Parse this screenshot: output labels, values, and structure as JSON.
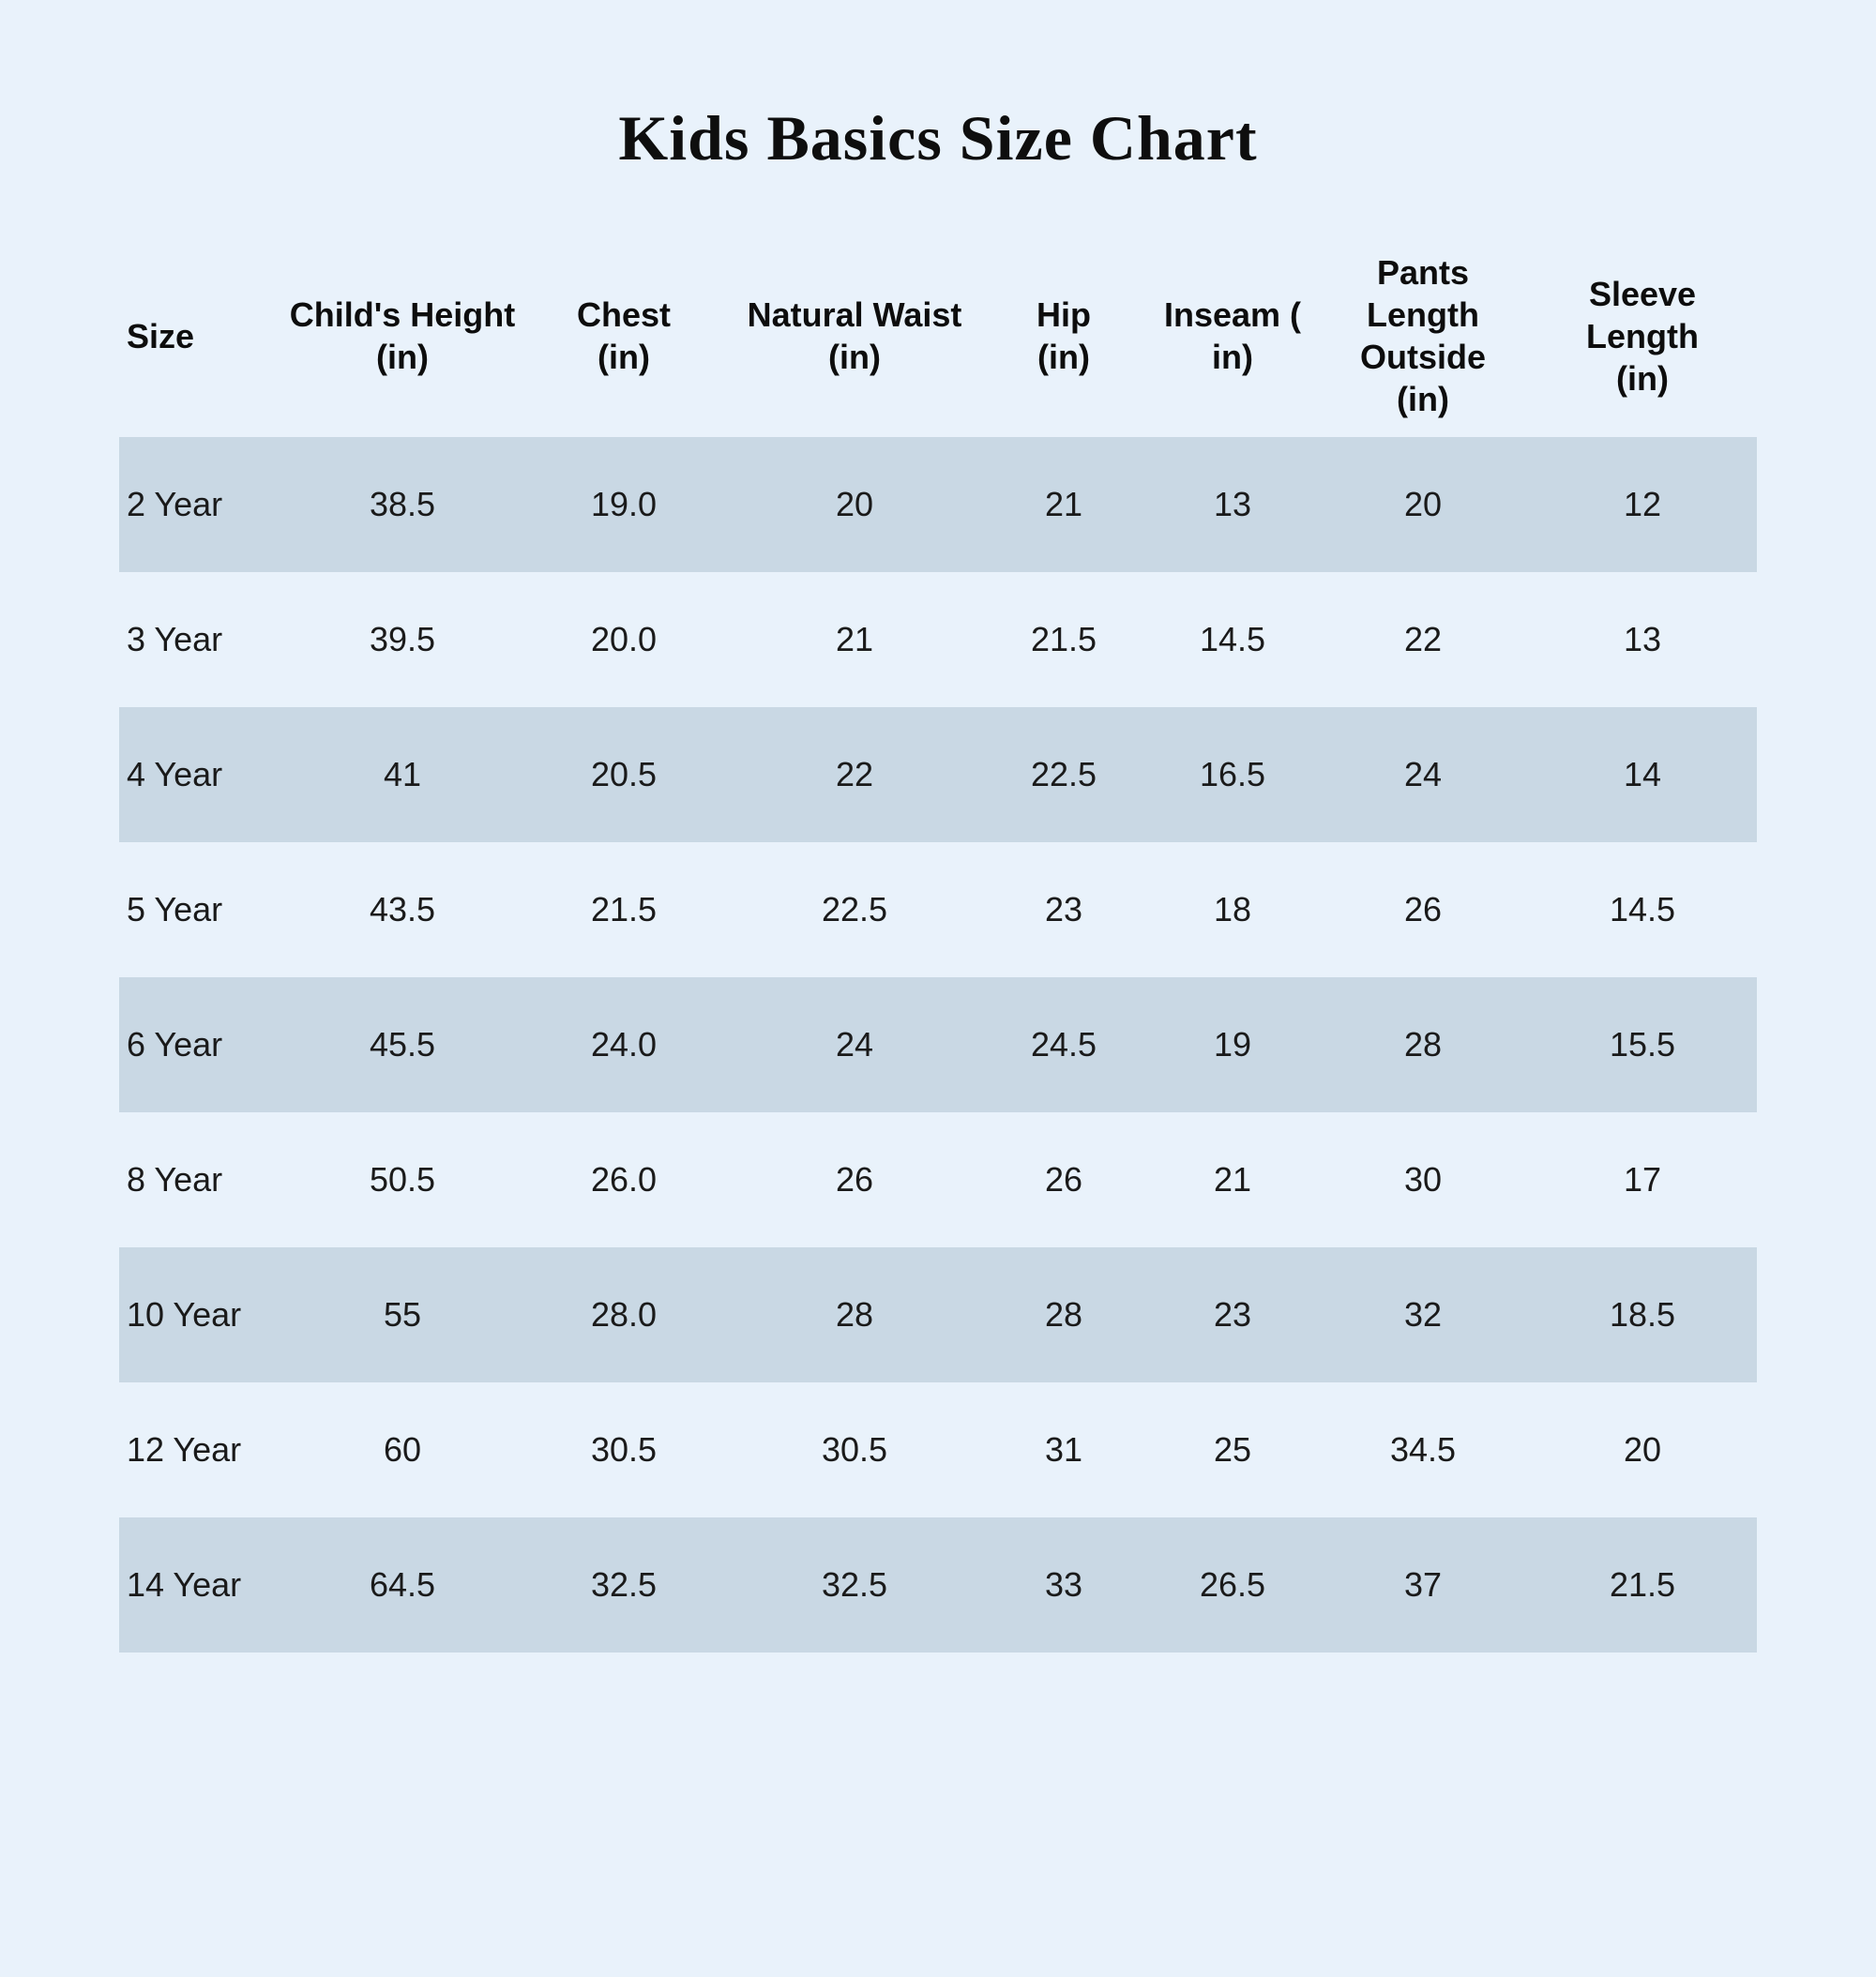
{
  "title": "Kids Basics Size Chart",
  "colors": {
    "background": "#e9f2fb",
    "row_shade": "#c9d8e4",
    "text": "#141414"
  },
  "table": {
    "columns": [
      "Size",
      "Child's Height\n(in)",
      "Chest\n(in)",
      "Natural Waist\n(in)",
      "Hip\n(in)",
      "Inseam ( in)",
      "Pants\nLength\nOutside\n(in)",
      "Sleeve Length\n(in)"
    ],
    "rows": [
      [
        "2 Year",
        "38.5",
        "19.0",
        "20",
        "21",
        "13",
        "20",
        "12"
      ],
      [
        "3 Year",
        "39.5",
        "20.0",
        "21",
        "21.5",
        "14.5",
        "22",
        "13"
      ],
      [
        "4 Year",
        "41",
        "20.5",
        "22",
        "22.5",
        "16.5",
        "24",
        "14"
      ],
      [
        "5 Year",
        "43.5",
        "21.5",
        "22.5",
        "23",
        "18",
        "26",
        "14.5"
      ],
      [
        "6 Year",
        "45.5",
        "24.0",
        "24",
        "24.5",
        "19",
        "28",
        "15.5"
      ],
      [
        "8 Year",
        "50.5",
        "26.0",
        "26",
        "26",
        "21",
        "30",
        "17"
      ],
      [
        "10 Year",
        "55",
        "28.0",
        "28",
        "28",
        "23",
        "32",
        "18.5"
      ],
      [
        "12 Year",
        "60",
        "30.5",
        "30.5",
        "31",
        "25",
        "34.5",
        "20"
      ],
      [
        "14 Year",
        "64.5",
        "32.5",
        "32.5",
        "33",
        "26.5",
        "37",
        "21.5"
      ]
    ]
  }
}
